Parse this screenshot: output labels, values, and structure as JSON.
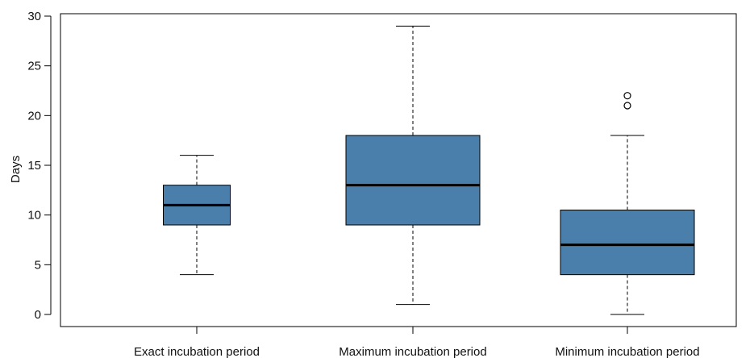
{
  "chart_data": {
    "type": "boxplot",
    "title": "",
    "xlabel": "",
    "ylabel": "Days",
    "ylim": [
      -1.2,
      30
    ],
    "yticks": [
      0,
      5,
      10,
      15,
      20,
      25,
      30
    ],
    "grid": false,
    "legend": "none",
    "box_color": "#4a7eab",
    "median_color": "#000000",
    "categories": [
      "Exact incubation period",
      "Maximum incubation period",
      "Minimum incubation period"
    ],
    "boxes": [
      {
        "category": "Exact incubation period",
        "whisker_low": 4,
        "q1": 9,
        "median": 11,
        "q3": 13,
        "whisker_high": 16,
        "outliers": []
      },
      {
        "category": "Maximum incubation period",
        "whisker_low": 1,
        "q1": 9,
        "median": 13,
        "q3": 18,
        "whisker_high": 29,
        "outliers": []
      },
      {
        "category": "Minimum incubation period",
        "whisker_low": 0,
        "q1": 4,
        "median": 7,
        "q3": 10.5,
        "whisker_high": 18,
        "outliers": [
          21,
          22
        ]
      }
    ]
  }
}
